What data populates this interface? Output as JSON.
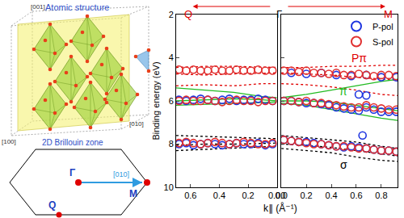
{
  "chart_data": {
    "type": "scatter",
    "y_label": "Binding energy (eV)",
    "x_label": "k∥ (Å⁻¹)",
    "ylim": [
      10,
      2
    ],
    "yticks": [
      2,
      4,
      6,
      8,
      10
    ],
    "grid": false,
    "legend": "upper right",
    "header": {
      "left": "Q",
      "center": "Γ",
      "right": "M"
    },
    "panels": [
      {
        "xlim": [
          0.7,
          0
        ],
        "xticks": [
          0.6,
          0.4,
          0.2,
          {
            "value": 0,
            "label": "0.00"
          }
        ],
        "series": [
          {
            "type": "line",
            "color": "#e00000",
            "line_style": "dot",
            "x": [
              0.7,
              0.5,
              0.3,
              0.1,
              0
            ],
            "values": [
              4.45,
              4.4,
              4.4,
              4.45,
              4.45
            ]
          },
          {
            "type": "line",
            "color": "#e00000",
            "line_style": "dot",
            "x": [
              0.7,
              0.5,
              0.3,
              0.1,
              0
            ],
            "values": [
              4.75,
              4.8,
              4.75,
              4.7,
              4.7
            ]
          },
          {
            "type": "line",
            "color": "#e00000",
            "line_style": "dot",
            "x": [
              0.7,
              0.5,
              0.3,
              0.1,
              0
            ],
            "values": [
              5.3,
              5.25,
              5.3,
              5.2,
              5.2
            ]
          },
          {
            "type": "line",
            "color": "#22bb22",
            "line_style": "solid",
            "x": [
              0.7,
              0.5,
              0.3,
              0.1,
              0
            ],
            "values": [
              5.4,
              5.5,
              5.6,
              5.8,
              5.85
            ]
          },
          {
            "type": "line",
            "color": "#22bb22",
            "line_style": "solid",
            "x": [
              0.7,
              0.5,
              0.3,
              0.1,
              0
            ],
            "values": [
              6.0,
              5.95,
              5.9,
              5.95,
              6.0
            ]
          },
          {
            "type": "line",
            "color": "#22bb22",
            "line_style": "solid",
            "x": [
              0.7,
              0.5,
              0.3,
              0.1,
              0
            ],
            "values": [
              6.2,
              6.15,
              6.1,
              6.05,
              6.05
            ]
          },
          {
            "type": "line",
            "color": "#000000",
            "line_style": "dot",
            "x": [
              0.7,
              0.5,
              0.3,
              0.1,
              0
            ],
            "values": [
              7.6,
              7.65,
              7.7,
              7.75,
              7.75
            ]
          },
          {
            "type": "line",
            "color": "#000000",
            "line_style": "dot",
            "x": [
              0.7,
              0.5,
              0.3,
              0.1,
              0
            ],
            "values": [
              8.05,
              8.0,
              8.0,
              7.95,
              7.95
            ]
          },
          {
            "type": "line",
            "color": "#000000",
            "line_style": "dot",
            "x": [
              0.7,
              0.5,
              0.3,
              0.1,
              0
            ],
            "values": [
              8.3,
              8.25,
              8.2,
              8.15,
              8.1
            ]
          },
          {
            "name": "P-pol",
            "color": "#1f35e0",
            "marker": "circle-open",
            "x": [
              0.68,
              0.63,
              0.58,
              0.53,
              0.48,
              0.43,
              0.38,
              0.33,
              0.28,
              0.23,
              0.18,
              0.13,
              0.08,
              0.03,
              0.68,
              0.63,
              0.58,
              0.53,
              0.48,
              0.43,
              0.38,
              0.33,
              0.28,
              0.23,
              0.18,
              0.13,
              0.08,
              0.03
            ],
            "values": [
              5.95,
              6.0,
              5.95,
              5.9,
              5.95,
              6.0,
              5.95,
              5.9,
              6.0,
              5.95,
              5.95,
              5.9,
              5.95,
              6.0,
              8.0,
              7.95,
              8.05,
              8.0,
              7.95,
              8.0,
              8.05,
              8.0,
              7.95,
              8.0,
              8.0,
              7.95,
              8.05,
              8.0
            ]
          },
          {
            "name": "S-pol",
            "color": "#e03030",
            "marker": "circle-open",
            "x": [
              0.68,
              0.63,
              0.58,
              0.53,
              0.48,
              0.43,
              0.38,
              0.33,
              0.28,
              0.23,
              0.18,
              0.13,
              0.08,
              0.03,
              0.68,
              0.63,
              0.58,
              0.53,
              0.48,
              0.43,
              0.38,
              0.33,
              0.28,
              0.23,
              0.18,
              0.13,
              0.08,
              0.03,
              0.68,
              0.63,
              0.58,
              0.53,
              0.48,
              0.43,
              0.38,
              0.33,
              0.28,
              0.23,
              0.18,
              0.13,
              0.08,
              0.03
            ],
            "values": [
              4.55,
              4.6,
              4.55,
              4.6,
              4.6,
              4.55,
              4.6,
              4.6,
              4.55,
              4.6,
              4.6,
              4.55,
              4.6,
              4.6,
              6.0,
              5.95,
              6.0,
              6.0,
              5.95,
              6.0,
              6.05,
              6.0,
              5.95,
              6.0,
              6.0,
              6.05,
              6.0,
              6.0,
              7.95,
              7.9,
              7.95,
              8.0,
              7.95,
              7.9,
              7.95,
              8.0,
              7.95,
              7.9,
              7.95,
              8.0,
              8.0,
              7.95
            ]
          }
        ]
      },
      {
        "xlim": [
          0,
          0.93
        ],
        "xticks": [
          {
            "value": 0,
            "label": "0.0"
          },
          0.2,
          0.4,
          0.6,
          0.8
        ],
        "tick_labels": "x",
        "series": [
          {
            "type": "line",
            "color": "#e00000",
            "line_style": "dot",
            "x": [
              0,
              0.2,
              0.4,
              0.6,
              0.8,
              0.93
            ],
            "values": [
              4.45,
              4.45,
              4.4,
              4.4,
              4.35,
              4.35
            ]
          },
          {
            "type": "line",
            "color": "#e00000",
            "line_style": "dot",
            "x": [
              0,
              0.2,
              0.4,
              0.6,
              0.8,
              0.93
            ],
            "values": [
              4.7,
              4.75,
              4.8,
              4.9,
              5.0,
              5.05
            ]
          },
          {
            "type": "line",
            "color": "#e00000",
            "line_style": "dot",
            "x": [
              0,
              0.2,
              0.4,
              0.6,
              0.8,
              0.93
            ],
            "values": [
              5.2,
              5.25,
              5.35,
              5.5,
              5.7,
              5.75
            ]
          },
          {
            "type": "line",
            "color": "#22bb22",
            "line_style": "solid",
            "x": [
              0,
              0.2,
              0.4,
              0.6,
              0.8,
              0.93
            ],
            "values": [
              5.85,
              5.7,
              5.5,
              5.3,
              5.1,
              5.0
            ]
          },
          {
            "type": "line",
            "color": "#22bb22",
            "line_style": "solid",
            "x": [
              0,
              0.2,
              0.4,
              0.6,
              0.8,
              0.93
            ],
            "values": [
              6.0,
              6.0,
              6.05,
              6.2,
              6.35,
              6.45
            ]
          },
          {
            "type": "line",
            "color": "#22bb22",
            "line_style": "solid",
            "x": [
              0,
              0.2,
              0.4,
              0.6,
              0.8,
              0.93
            ],
            "values": [
              6.1,
              6.2,
              6.4,
              6.6,
              6.8,
              6.9
            ]
          },
          {
            "type": "line",
            "color": "#000000",
            "line_style": "dot",
            "x": [
              0,
              0.2,
              0.4,
              0.6,
              0.8,
              0.93
            ],
            "values": [
              7.6,
              7.7,
              7.8,
              7.9,
              8.1,
              8.2
            ]
          },
          {
            "type": "line",
            "color": "#000000",
            "line_style": "dot",
            "x": [
              0,
              0.2,
              0.4,
              0.6,
              0.8,
              0.93
            ],
            "values": [
              8.0,
              8.05,
              8.15,
              8.3,
              8.45,
              8.55
            ]
          },
          {
            "type": "line",
            "color": "#000000",
            "line_style": "dot",
            "x": [
              0,
              0.2,
              0.4,
              0.6,
              0.8,
              0.93
            ],
            "values": [
              8.2,
              8.3,
              8.4,
              8.6,
              8.75,
              8.8
            ]
          },
          {
            "name": "P-pol",
            "color": "#1f35e0",
            "marker": "circle-open",
            "x": [
              0.02,
              0.08,
              0.14,
              0.2,
              0.26,
              0.32,
              0.38,
              0.44,
              0.5,
              0.56,
              0.62,
              0.68,
              0.74,
              0.8,
              0.86,
              0.92,
              0.02,
              0.08,
              0.14,
              0.2,
              0.26,
              0.32,
              0.38,
              0.44,
              0.5,
              0.56,
              0.62,
              0.68,
              0.74,
              0.8,
              0.86,
              0.92,
              0.62,
              0.68,
              0.65,
              0.08,
              0.2,
              0.32,
              0.44,
              0.56,
              0.68,
              0.8,
              0.92
            ],
            "values": [
              6.0,
              6.0,
              6.05,
              6.1,
              6.1,
              6.15,
              6.2,
              6.3,
              6.35,
              6.4,
              6.45,
              6.3,
              6.4,
              6.5,
              6.5,
              6.5,
              7.8,
              7.85,
              7.9,
              7.9,
              7.95,
              8.0,
              8.05,
              8.1,
              8.15,
              8.1,
              8.15,
              8.2,
              8.25,
              8.3,
              8.3,
              8.35,
              5.7,
              5.75,
              7.6,
              4.7,
              4.75,
              4.7,
              4.8,
              4.85,
              4.8,
              4.9,
              4.9
            ]
          },
          {
            "name": "S-pol",
            "color": "#e03030",
            "marker": "circle-open",
            "x": [
              0.02,
              0.08,
              0.14,
              0.2,
              0.26,
              0.32,
              0.38,
              0.44,
              0.5,
              0.56,
              0.62,
              0.68,
              0.74,
              0.8,
              0.86,
              0.92,
              0.02,
              0.08,
              0.14,
              0.2,
              0.26,
              0.32,
              0.38,
              0.44,
              0.5,
              0.56,
              0.62,
              0.68,
              0.74,
              0.8,
              0.86,
              0.92,
              0.02,
              0.08,
              0.14,
              0.2,
              0.26,
              0.32,
              0.38,
              0.44,
              0.5,
              0.56,
              0.62,
              0.68,
              0.74,
              0.8,
              0.86,
              0.92
            ],
            "values": [
              4.6,
              4.6,
              4.65,
              4.6,
              4.7,
              4.7,
              4.75,
              4.7,
              4.8,
              4.8,
              4.75,
              4.8,
              4.85,
              4.8,
              4.8,
              4.85,
              6.0,
              6.0,
              6.05,
              6.0,
              6.1,
              6.1,
              6.15,
              6.2,
              6.25,
              6.3,
              6.3,
              6.2,
              6.3,
              6.35,
              6.4,
              6.4,
              7.8,
              7.85,
              7.9,
              7.95,
              8.0,
              8.0,
              8.05,
              8.1,
              8.1,
              8.15,
              8.2,
              8.2,
              8.25,
              8.3,
              8.3,
              8.35
            ]
          }
        ],
        "annotations": [
          {
            "text": "Pπ",
            "x": 0.62,
            "y": 4.0,
            "color": "#e00000"
          },
          {
            "text": "π",
            "x": 0.5,
            "y": 5.55,
            "color": "#22bb22"
          },
          {
            "text": "σ",
            "x": 0.5,
            "y": 8.95,
            "color": "#000000"
          }
        ]
      }
    ]
  },
  "diagram": {
    "atomic_structure": {
      "title": "Atomic structure",
      "axis_up": "[001]",
      "axis_left": "[100]",
      "axis_right": "[010]"
    },
    "brillouin_zone": {
      "title": "2D Brillouin zone",
      "center": "Γ",
      "edge": "M",
      "corner": "Q",
      "direction": "[010]"
    }
  }
}
